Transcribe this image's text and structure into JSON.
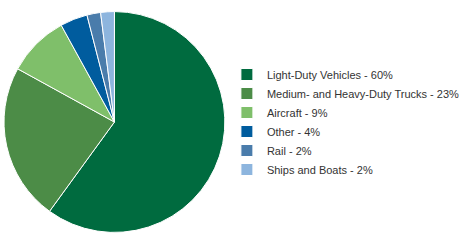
{
  "chart_data": {
    "type": "pie",
    "categories": [
      "Light-Duty Vehicles - 60%",
      "Medium- and Heavy-Duty Trucks - 23%",
      "Aircraft - 9%",
      "Other - 4%",
      "Rail - 2%",
      "Ships and Boats - 2%"
    ],
    "values": [
      60,
      23,
      9,
      4,
      2,
      2
    ],
    "colors": [
      "#006b3f",
      "#4c8c47",
      "#7fbf6a",
      "#005c9e",
      "#4a7cab",
      "#8db5de"
    ],
    "legend": "right"
  }
}
